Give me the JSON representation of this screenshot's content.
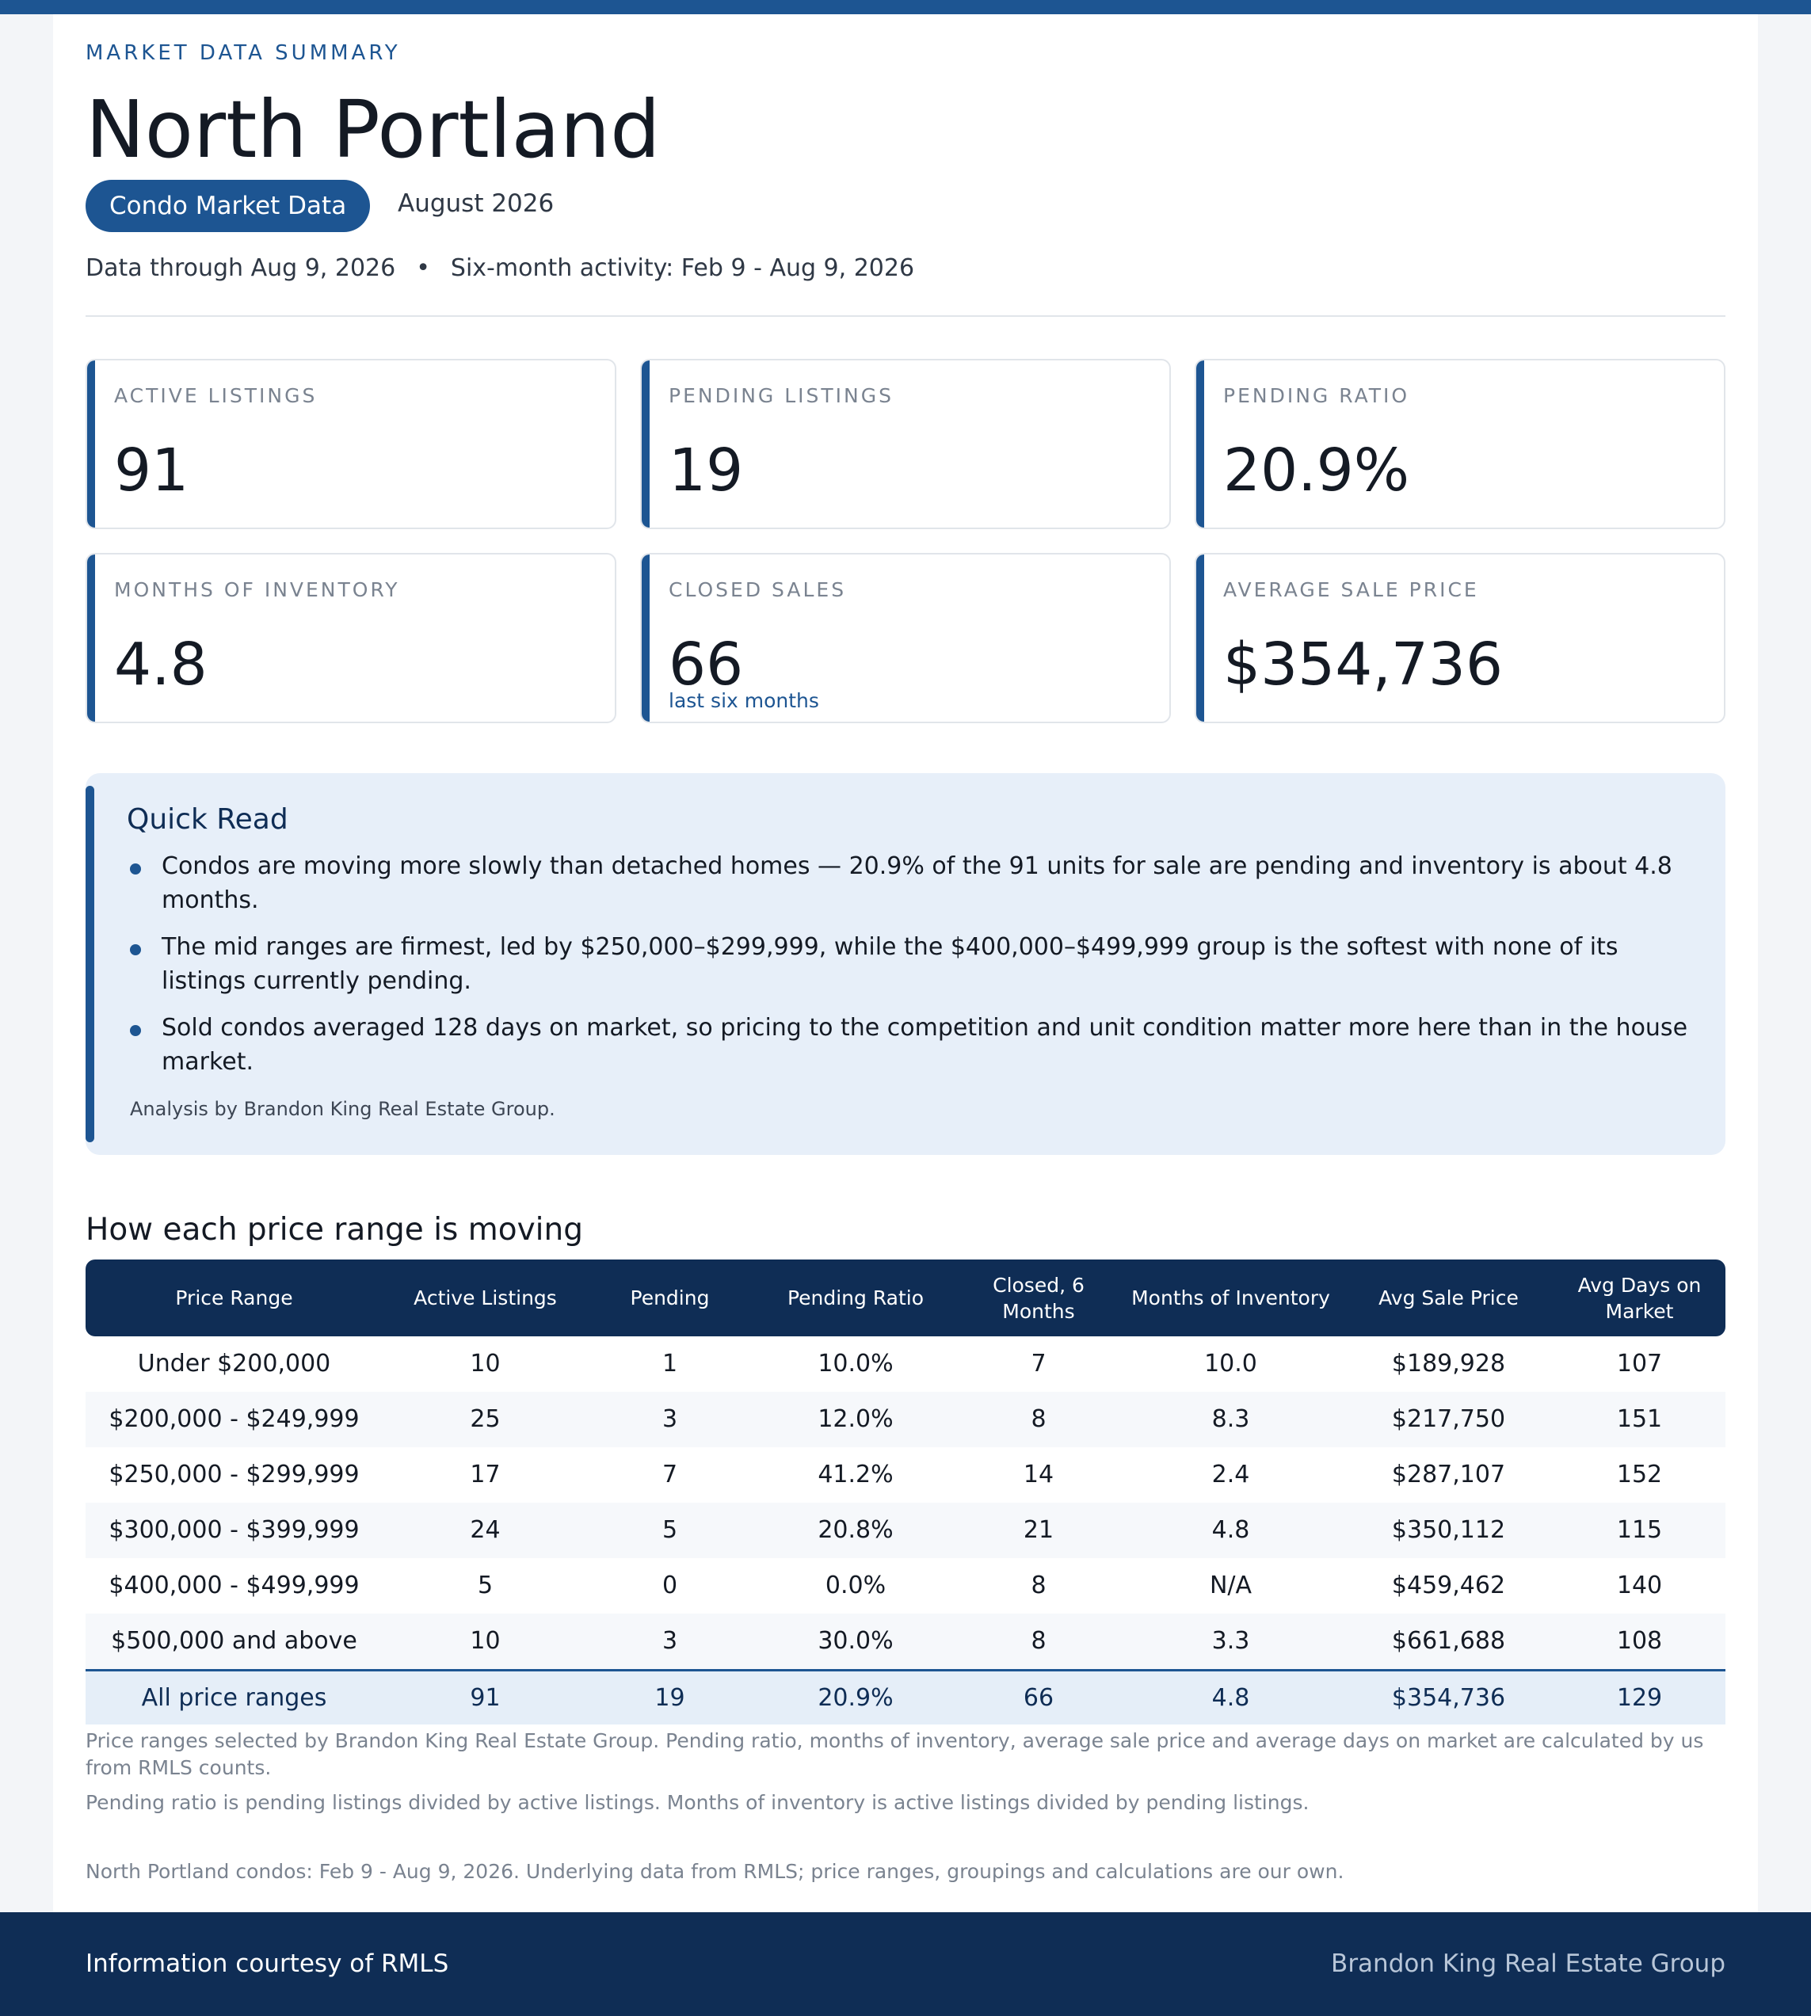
{
  "header": {
    "eyebrow": "MARKET DATA SUMMARY",
    "title": "North Portland",
    "pill": "Condo Market Data",
    "period": "August 2026",
    "data_through": "Data through Aug 9, 2026",
    "separator": "•",
    "six_month": "Six-month activity: Feb 9 - Aug 9, 2026"
  },
  "stats": [
    {
      "label": "ACTIVE LISTINGS",
      "value": "91",
      "note": ""
    },
    {
      "label": "PENDING LISTINGS",
      "value": "19",
      "note": ""
    },
    {
      "label": "PENDING RATIO",
      "value": "20.9%",
      "note": ""
    },
    {
      "label": "MONTHS OF INVENTORY",
      "value": "4.8",
      "note": ""
    },
    {
      "label": "CLOSED SALES",
      "value": "66",
      "note": "last six months"
    },
    {
      "label": "AVERAGE SALE PRICE",
      "value": "$354,736",
      "note": ""
    }
  ],
  "quick_read": {
    "heading": "Quick Read",
    "bullets": [
      "Condos are moving more slowly than detached homes — 20.9% of the 91 units for sale are pending and inventory is about 4.8 months.",
      "The mid ranges are firmest, led by $250,000–$299,999, while the $400,000–$499,999 group is the softest with none of its listings currently pending.",
      "Sold condos averaged 128 days on market, so pricing to the competition and unit condition matter more here than in the house market."
    ],
    "credit": "Analysis by Brandon King Real Estate Group."
  },
  "table": {
    "heading": "How each price range is moving",
    "columns": [
      "Price Range",
      "Active Listings",
      "Pending",
      "Pending Ratio",
      "Closed, 6 Months",
      "Months of Inventory",
      "Avg Sale Price",
      "Avg Days on Market"
    ],
    "rows": [
      [
        "Under $200,000",
        "10",
        "1",
        "10.0%",
        "7",
        "10.0",
        "$189,928",
        "107"
      ],
      [
        "$200,000 - $249,999",
        "25",
        "3",
        "12.0%",
        "8",
        "8.3",
        "$217,750",
        "151"
      ],
      [
        "$250,000 - $299,999",
        "17",
        "7",
        "41.2%",
        "14",
        "2.4",
        "$287,107",
        "152"
      ],
      [
        "$300,000 - $399,999",
        "24",
        "5",
        "20.8%",
        "21",
        "4.8",
        "$350,112",
        "115"
      ],
      [
        "$400,000 - $499,999",
        "5",
        "0",
        "0.0%",
        "8",
        "N/A",
        "$459,462",
        "140"
      ],
      [
        "$500,000 and above",
        "10",
        "3",
        "30.0%",
        "8",
        "3.3",
        "$661,688",
        "108"
      ]
    ],
    "total": [
      "All price ranges",
      "91",
      "19",
      "20.9%",
      "66",
      "4.8",
      "$354,736",
      "129"
    ]
  },
  "footnotes": [
    "Price ranges selected by Brandon King Real Estate Group. Pending ratio, months of inventory, average sale price and average days on market are calculated by us from RMLS counts.",
    "Pending ratio is pending listings divided by active listings. Months of inventory is active listings divided by pending listings.",
    "North Portland condos: Feb 9 - Aug 9, 2026. Underlying data from RMLS; price ranges, groupings and calculations are our own."
  ],
  "footer": {
    "left": "Information courtesy of RMLS",
    "right": "Brandon King Real Estate Group"
  },
  "colors": {
    "accent": "#1d5592",
    "navy": "#0f2d55",
    "panel": "#e7eff9"
  }
}
